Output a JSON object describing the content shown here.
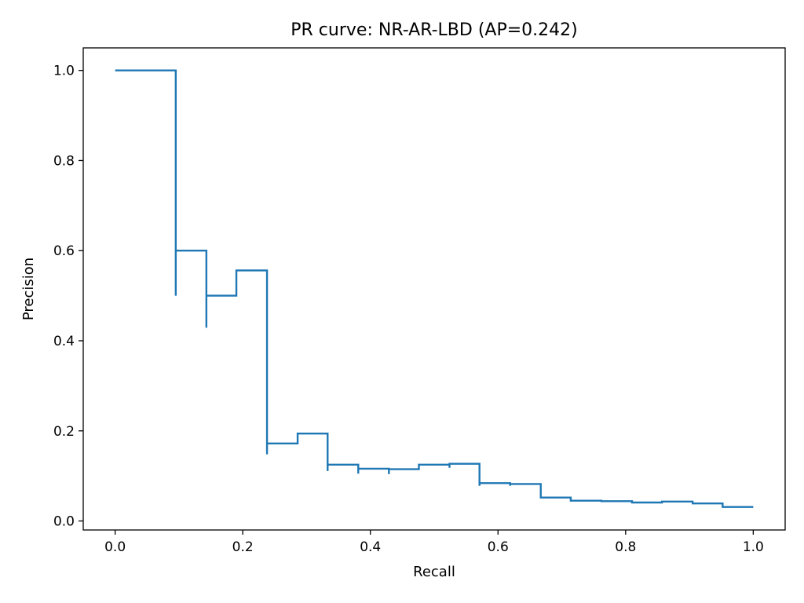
{
  "chart_data": {
    "type": "line",
    "drawstyle": "steps",
    "title": "PR curve: NR-AR-LBD (AP=0.242)",
    "xlabel": "Recall",
    "ylabel": "Precision",
    "xlim": [
      -0.05,
      1.05
    ],
    "ylim": [
      -0.02,
      1.05
    ],
    "xticks": [
      "0.0",
      "0.2",
      "0.4",
      "0.6",
      "0.8",
      "1.0"
    ],
    "yticks": [
      "0.0",
      "0.2",
      "0.4",
      "0.6",
      "0.8",
      "1.0"
    ],
    "grid": false,
    "line_color": "#1f77b4",
    "series": [
      {
        "recall": [
          0.0,
          0.095,
          0.095,
          0.095,
          0.143,
          0.143,
          0.143,
          0.19,
          0.19,
          0.238,
          0.238,
          0.238,
          0.286,
          0.286,
          0.333,
          0.333,
          0.333,
          0.381,
          0.381,
          0.381,
          0.429,
          0.429,
          0.429,
          0.476,
          0.476,
          0.524,
          0.524,
          0.524,
          0.571,
          0.571,
          0.571,
          0.619,
          0.619,
          0.619,
          0.667,
          0.667,
          0.714,
          0.714,
          0.762,
          0.762,
          0.81,
          0.81,
          0.857,
          0.857,
          0.905,
          0.905,
          0.952,
          0.952,
          1.0
        ],
        "precision": [
          1.0,
          1.0,
          0.5,
          0.6,
          0.6,
          0.429,
          0.5,
          0.5,
          0.556,
          0.556,
          0.148,
          0.172,
          0.172,
          0.194,
          0.194,
          0.111,
          0.125,
          0.125,
          0.105,
          0.116,
          0.116,
          0.104,
          0.115,
          0.115,
          0.125,
          0.125,
          0.118,
          0.127,
          0.127,
          0.078,
          0.084,
          0.084,
          0.078,
          0.082,
          0.082,
          0.052,
          0.052,
          0.045,
          0.045,
          0.044,
          0.044,
          0.041,
          0.041,
          0.043,
          0.043,
          0.039,
          0.039,
          0.031,
          0.031
        ]
      }
    ]
  }
}
